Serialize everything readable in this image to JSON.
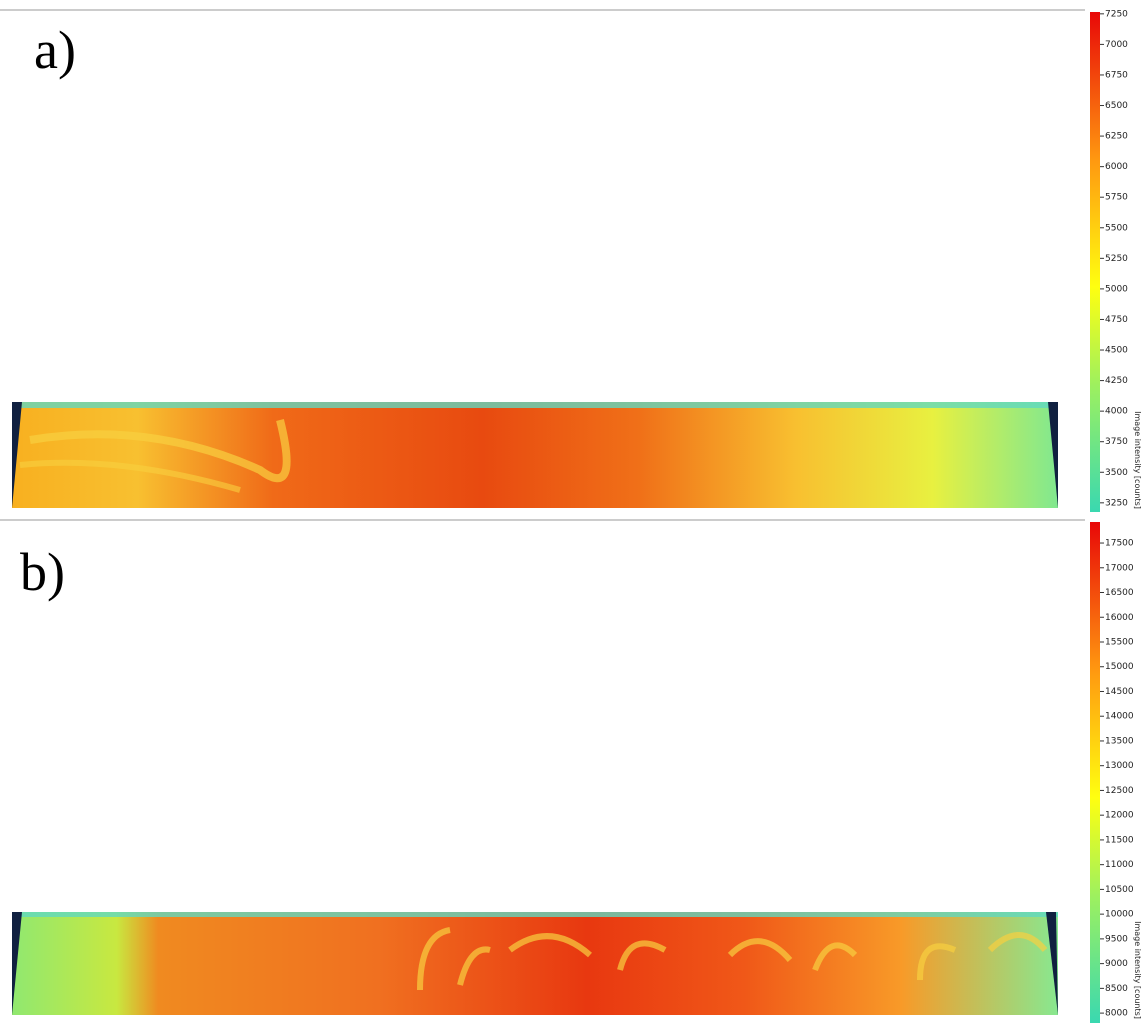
{
  "panels": [
    {
      "label": "a)",
      "colorbar": {
        "label": "Image intensity [counts]",
        "range": [
          3175,
          7265
        ],
        "ticks": [
          3250,
          3500,
          3750,
          4000,
          4250,
          4500,
          4750,
          5000,
          5250,
          5500,
          5750,
          6000,
          6250,
          6500,
          6750,
          7000,
          7250
        ]
      }
    },
    {
      "label": "b)",
      "colorbar": {
        "label": "Image intensity [counts]",
        "range": [
          7800,
          17925
        ],
        "ticks": [
          8000,
          8500,
          9000,
          9500,
          10000,
          10500,
          11000,
          11500,
          12000,
          12500,
          13000,
          13500,
          14000,
          14500,
          15000,
          15500,
          16000,
          16500,
          17000,
          17500
        ]
      }
    }
  ]
}
